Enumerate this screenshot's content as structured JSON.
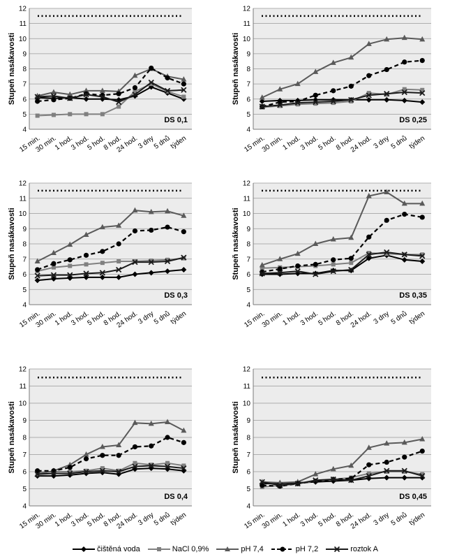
{
  "chart_data": [
    {
      "type": "line",
      "ylabel": "Stupeň nasákavosti",
      "ylim": [
        4,
        12
      ],
      "yticks": [
        4,
        5,
        6,
        7,
        8,
        9,
        10,
        11,
        12
      ],
      "categories": [
        "15 min.",
        "30 min.",
        "1 hod.",
        "3 hod.",
        "5 hod.",
        "8 hod.",
        "24 hod.",
        "3 dny",
        "5 dnů",
        "týden"
      ],
      "reference_line": 11.5,
      "annotation": "DS 0,1",
      "grid": true,
      "series": [
        {
          "name": "čištěná voda",
          "values": [
            6.1,
            6.05,
            6.1,
            6.0,
            6.0,
            5.95,
            6.2,
            6.8,
            6.4,
            6.0
          ]
        },
        {
          "name": "NaCl 0,9%",
          "values": [
            4.9,
            4.95,
            5.0,
            5.0,
            5.0,
            5.5,
            6.5,
            7.0,
            6.5,
            6.15
          ]
        },
        {
          "name": "pH 7,4",
          "values": [
            6.2,
            6.45,
            6.3,
            6.55,
            6.55,
            6.5,
            7.55,
            8.0,
            7.5,
            7.3
          ]
        },
        {
          "name": "pH 7,2",
          "values": [
            5.85,
            5.95,
            6.05,
            6.35,
            6.25,
            6.35,
            6.75,
            8.05,
            7.4,
            7.0
          ]
        },
        {
          "name": "roztok A",
          "values": [
            6.15,
            6.2,
            6.05,
            6.3,
            6.15,
            5.8,
            6.3,
            7.1,
            6.55,
            6.6
          ]
        }
      ]
    },
    {
      "type": "line",
      "ylabel": "Stupeň nasákavosti",
      "ylim": [
        4,
        12
      ],
      "yticks": [
        4,
        5,
        6,
        7,
        8,
        9,
        10,
        11,
        12
      ],
      "categories": [
        "15 min.",
        "30 min.",
        "1 hod.",
        "3 hod.",
        "5 hod.",
        "8 hod.",
        "24 hod.",
        "3 dny",
        "5 dnů",
        "týden"
      ],
      "reference_line": 11.5,
      "annotation": "DS 0,25",
      "grid": true,
      "series": [
        {
          "name": "čištěná voda",
          "values": [
            5.85,
            5.9,
            5.9,
            5.95,
            5.95,
            5.95,
            5.95,
            5.95,
            5.9,
            5.8
          ]
        },
        {
          "name": "NaCl 0,9%",
          "values": [
            5.45,
            5.55,
            5.65,
            5.7,
            5.75,
            5.85,
            6.4,
            6.3,
            6.65,
            6.6
          ]
        },
        {
          "name": "pH 7,4",
          "values": [
            6.1,
            6.65,
            7.0,
            7.8,
            8.4,
            8.75,
            9.65,
            9.95,
            10.05,
            9.95
          ]
        },
        {
          "name": "pH 7,2",
          "values": [
            5.5,
            5.8,
            5.85,
            6.25,
            6.55,
            6.85,
            7.55,
            7.95,
            8.45,
            8.55
          ]
        },
        {
          "name": "roztok A",
          "values": [
            5.5,
            5.6,
            5.75,
            5.8,
            5.85,
            5.95,
            6.25,
            6.35,
            6.45,
            6.4
          ]
        }
      ]
    },
    {
      "type": "line",
      "ylabel": "Stupeň nasákavosti",
      "ylim": [
        4,
        12
      ],
      "yticks": [
        4,
        5,
        6,
        7,
        8,
        9,
        10,
        11,
        12
      ],
      "categories": [
        "15 min.",
        "30 min.",
        "1 hod.",
        "3 hod.",
        "5 hod.",
        "8 hod.",
        "24 hod.",
        "3 dny",
        "5 dnů",
        "týden"
      ],
      "reference_line": 11.5,
      "annotation": "DS 0,3",
      "grid": true,
      "series": [
        {
          "name": "čištěná voda",
          "values": [
            5.6,
            5.7,
            5.75,
            5.8,
            5.8,
            5.8,
            6.0,
            6.1,
            6.2,
            6.3
          ]
        },
        {
          "name": "NaCl 0,9%",
          "values": [
            6.2,
            6.45,
            6.55,
            6.65,
            6.75,
            6.85,
            6.85,
            6.9,
            6.95,
            7.05
          ]
        },
        {
          "name": "pH 7,4",
          "values": [
            6.85,
            7.4,
            7.95,
            8.6,
            9.1,
            9.2,
            10.2,
            10.1,
            10.15,
            9.85
          ]
        },
        {
          "name": "pH 7,2",
          "values": [
            6.3,
            6.7,
            6.95,
            7.25,
            7.5,
            8.0,
            8.85,
            8.9,
            9.1,
            8.8
          ]
        },
        {
          "name": "roztok A",
          "values": [
            5.9,
            5.95,
            5.95,
            6.05,
            6.1,
            6.3,
            6.8,
            6.8,
            6.85,
            7.1
          ]
        }
      ]
    },
    {
      "type": "line",
      "ylabel": "Stupeň nasákavosti",
      "ylim": [
        4,
        12
      ],
      "yticks": [
        4,
        5,
        6,
        7,
        8,
        9,
        10,
        11,
        12
      ],
      "categories": [
        "15 min.",
        "30 min.",
        "1 hod.",
        "3 hod.",
        "5 hod.",
        "8 hod.",
        "24 hod.",
        "3 dny",
        "5 dnů",
        "týden"
      ],
      "reference_line": 11.5,
      "annotation": "DS 0,35",
      "grid": true,
      "series": [
        {
          "name": "čištěná voda",
          "values": [
            6.0,
            6.0,
            6.05,
            6.05,
            6.25,
            6.25,
            7.05,
            7.25,
            6.95,
            6.85
          ]
        },
        {
          "name": "NaCl 0,9%",
          "values": [
            6.4,
            6.45,
            6.5,
            6.55,
            6.65,
            6.75,
            7.4,
            7.35,
            7.3,
            7.3
          ]
        },
        {
          "name": "pH 7,4",
          "values": [
            6.6,
            7.0,
            7.35,
            8.0,
            8.3,
            8.4,
            11.15,
            11.4,
            10.65,
            10.65
          ]
        },
        {
          "name": "pH 7,2",
          "values": [
            6.15,
            6.35,
            6.55,
            6.65,
            6.95,
            7.05,
            8.45,
            9.55,
            9.95,
            9.75
          ]
        },
        {
          "name": "roztok A",
          "values": [
            6.05,
            6.1,
            6.2,
            6.0,
            6.2,
            6.3,
            7.3,
            7.45,
            7.3,
            7.2
          ]
        }
      ]
    },
    {
      "type": "line",
      "ylabel": "Stupeň nasákavosti",
      "ylim": [
        4,
        12
      ],
      "yticks": [
        4,
        5,
        6,
        7,
        8,
        9,
        10,
        11,
        12
      ],
      "categories": [
        "15 min.",
        "30 min.",
        "1 hod.",
        "3 hod.",
        "5 hod.",
        "8 hod.",
        "24 hod.",
        "3 dny",
        "5 dnů",
        "týden"
      ],
      "reference_line": 11.5,
      "annotation": "DS 0,4",
      "grid": true,
      "series": [
        {
          "name": "čištěná voda",
          "values": [
            5.75,
            5.75,
            5.8,
            5.9,
            5.95,
            5.85,
            6.15,
            6.2,
            6.15,
            6.05
          ]
        },
        {
          "name": "NaCl 0,9%",
          "values": [
            5.95,
            6.0,
            6.0,
            6.05,
            6.2,
            6.05,
            6.5,
            6.4,
            6.5,
            6.35
          ]
        },
        {
          "name": "pH 7,4",
          "values": [
            5.85,
            6.05,
            6.4,
            7.0,
            7.45,
            7.55,
            8.85,
            8.8,
            8.9,
            8.4
          ]
        },
        {
          "name": "pH 7,2",
          "values": [
            6.05,
            6.05,
            6.25,
            6.75,
            6.95,
            6.95,
            7.45,
            7.5,
            8.0,
            7.7
          ]
        },
        {
          "name": "roztok A",
          "values": [
            5.85,
            5.9,
            5.9,
            6.0,
            6.05,
            6.0,
            6.3,
            6.35,
            6.3,
            6.2
          ]
        }
      ]
    },
    {
      "type": "line",
      "ylabel": "Stupeň nasákavosti",
      "ylim": [
        4,
        12
      ],
      "yticks": [
        4,
        5,
        6,
        7,
        8,
        9,
        10,
        11,
        12
      ],
      "categories": [
        "15 min.",
        "30 min.",
        "1 hod.",
        "3 hod.",
        "5 hod.",
        "8 hod.",
        "24 hod.",
        "3 dny",
        "5 dnů",
        "týden"
      ],
      "reference_line": 11.5,
      "annotation": "DS 0,45",
      "grid": true,
      "series": [
        {
          "name": "čištěná voda",
          "values": [
            5.3,
            5.3,
            5.35,
            5.4,
            5.45,
            5.5,
            5.6,
            5.65,
            5.65,
            5.65
          ]
        },
        {
          "name": "NaCl 0,9%",
          "values": [
            5.1,
            5.2,
            5.3,
            5.45,
            5.55,
            5.65,
            5.9,
            6.0,
            6.0,
            5.85
          ]
        },
        {
          "name": "pH 7,4",
          "values": [
            5.4,
            5.35,
            5.4,
            5.85,
            6.15,
            6.35,
            7.4,
            7.65,
            7.7,
            7.9
          ]
        },
        {
          "name": "pH 7,2",
          "values": [
            5.2,
            5.15,
            5.3,
            5.45,
            5.55,
            5.6,
            6.4,
            6.55,
            6.85,
            7.2
          ]
        },
        {
          "name": "roztok A",
          "values": [
            5.4,
            5.2,
            5.3,
            5.5,
            5.55,
            5.5,
            5.75,
            6.05,
            6.05,
            5.75
          ]
        }
      ]
    }
  ],
  "legend": {
    "placement": "bottom",
    "items": [
      {
        "label": "čištěná voda",
        "marker": "diamond",
        "color": "#000000",
        "dashed": false
      },
      {
        "label": "NaCl 0,9%",
        "marker": "square",
        "color": "#808080",
        "dashed": false
      },
      {
        "label": "pH 7,4",
        "marker": "triangle",
        "color": "#5a5a5a",
        "dashed": false
      },
      {
        "label": "pH 7,2",
        "marker": "circle",
        "color": "#000000",
        "dashed": true
      },
      {
        "label": "roztok A",
        "marker": "cross",
        "color": "#1a1a1a",
        "dashed": false
      }
    ]
  },
  "colors": {
    "plot_background": "#ececec",
    "gridline": "#9a9a9a"
  }
}
